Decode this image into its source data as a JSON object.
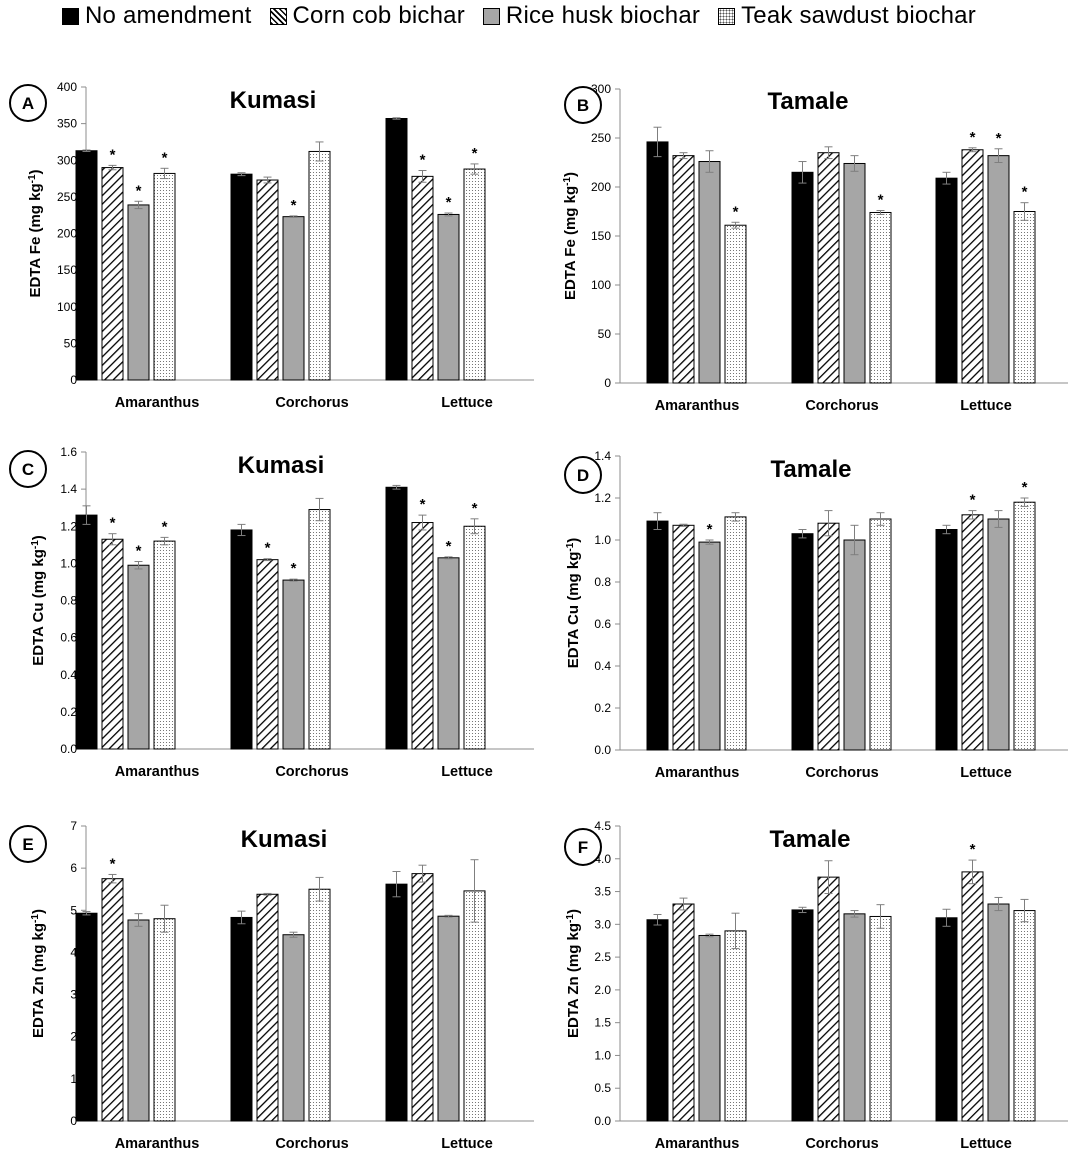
{
  "legend": [
    {
      "name": "No amendment",
      "style": "solid"
    },
    {
      "name": "Corn cob bichar",
      "style": "hatch"
    },
    {
      "name": "Rice husk biochar",
      "style": "gray"
    },
    {
      "name": "Teak sawdust biochar",
      "style": "dots"
    }
  ],
  "colors": {
    "solid": "#000000",
    "gray": "#a6a6a6",
    "hatch": "#000000",
    "dots": "#8a8a8a",
    "error": "#7f7f7f"
  },
  "chart_data": [
    {
      "type": "bar",
      "panel": "A",
      "title": "Kumasi",
      "ylabel_prefix": "EDTA Fe  (mg kg",
      "ylabel_sup": "-1",
      "ylabel_suffix": ")",
      "categories": [
        "Amaranthus",
        "Corchorus",
        "Lettuce"
      ],
      "ylim": [
        0,
        400
      ],
      "yticks": [
        "0",
        "50",
        "100",
        "150",
        "200",
        "250",
        "300",
        "350",
        "400"
      ],
      "series": [
        {
          "name": "No amendment",
          "values": [
            313,
            281,
            357
          ],
          "errors": [
            1,
            2,
            1
          ],
          "sig": [
            "",
            "",
            ""
          ]
        },
        {
          "name": "Corn cob bichar",
          "values": [
            290,
            273,
            278
          ],
          "errors": [
            3,
            4,
            8
          ],
          "sig": [
            "*",
            "",
            "*"
          ]
        },
        {
          "name": "Rice husk biochar",
          "values": [
            239,
            223,
            226
          ],
          "errors": [
            5,
            1,
            2
          ],
          "sig": [
            "*",
            "*",
            "*"
          ]
        },
        {
          "name": "Teak sawdust biochar",
          "values": [
            282,
            312,
            288
          ],
          "errors": [
            7,
            13,
            7
          ],
          "sig": [
            "*",
            "",
            "*"
          ]
        }
      ]
    },
    {
      "type": "bar",
      "panel": "B",
      "title": "Tamale",
      "ylabel_prefix": "EDTA Fe  (mg kg",
      "ylabel_sup": "-1",
      "ylabel_suffix": ")",
      "categories": [
        "Amaranthus",
        "Corchorus",
        "Lettuce"
      ],
      "ylim": [
        0,
        300
      ],
      "yticks": [
        "0",
        "50",
        "100",
        "150",
        "200",
        "250",
        "300"
      ],
      "series": [
        {
          "name": "No amendment",
          "values": [
            246,
            215,
            209
          ],
          "errors": [
            15,
            11,
            6
          ],
          "sig": [
            "",
            "",
            ""
          ]
        },
        {
          "name": "Corn cob bichar",
          "values": [
            232,
            235,
            238
          ],
          "errors": [
            3,
            6,
            2
          ],
          "sig": [
            "",
            "",
            "*"
          ]
        },
        {
          "name": "Rice husk biochar",
          "values": [
            226,
            224,
            232
          ],
          "errors": [
            11,
            8,
            7
          ],
          "sig": [
            "",
            "",
            "*"
          ]
        },
        {
          "name": "Teak sawdust biochar",
          "values": [
            161,
            174,
            175
          ],
          "errors": [
            3,
            2,
            9
          ],
          "sig": [
            "*",
            "*",
            "*"
          ]
        }
      ]
    },
    {
      "type": "bar",
      "panel": "C",
      "title": "Kumasi",
      "ylabel_prefix": "EDTA Cu  (mg kg",
      "ylabel_sup": "-1",
      "ylabel_suffix": ")",
      "categories": [
        "Amaranthus",
        "Corchorus",
        "Lettuce"
      ],
      "ylim": [
        0,
        1.6
      ],
      "yticks": [
        "0.0",
        "0.2",
        "0.4",
        "0.6",
        "0.8",
        "1.0",
        "1.2",
        "1.4",
        "1.6"
      ],
      "series": [
        {
          "name": "No amendment",
          "values": [
            1.26,
            1.18,
            1.41
          ],
          "errors": [
            0.05,
            0.03,
            0.01
          ],
          "sig": [
            "",
            "",
            ""
          ]
        },
        {
          "name": "Corn cob bichar",
          "values": [
            1.13,
            1.02,
            1.22
          ],
          "errors": [
            0.03,
            0.005,
            0.04
          ],
          "sig": [
            "*",
            "*",
            "*"
          ]
        },
        {
          "name": "Rice husk biochar",
          "values": [
            0.99,
            0.91,
            1.03
          ],
          "errors": [
            0.02,
            0.005,
            0.005
          ],
          "sig": [
            "*",
            "*",
            "*"
          ]
        },
        {
          "name": "Teak sawdust biochar",
          "values": [
            1.12,
            1.29,
            1.2
          ],
          "errors": [
            0.02,
            0.06,
            0.04
          ],
          "sig": [
            "*",
            "",
            "*"
          ]
        }
      ]
    },
    {
      "type": "bar",
      "panel": "D",
      "title": "Tamale",
      "ylabel_prefix": "EDTA Cu  (mg kg",
      "ylabel_sup": "-1",
      "ylabel_suffix": ")",
      "categories": [
        "Amaranthus",
        "Corchorus",
        "Lettuce"
      ],
      "ylim": [
        0,
        1.4
      ],
      "yticks": [
        "0.0",
        "0.2",
        "0.4",
        "0.6",
        "0.8",
        "1.0",
        "1.2",
        "1.4"
      ],
      "series": [
        {
          "name": "No amendment",
          "values": [
            1.09,
            1.03,
            1.05
          ],
          "errors": [
            0.04,
            0.02,
            0.02
          ],
          "sig": [
            "",
            "",
            ""
          ]
        },
        {
          "name": "Corn cob bichar",
          "values": [
            1.07,
            1.08,
            1.12
          ],
          "errors": [
            0.005,
            0.06,
            0.02
          ],
          "sig": [
            "",
            "",
            "*"
          ]
        },
        {
          "name": "Rice husk biochar",
          "values": [
            0.99,
            1.0,
            1.1
          ],
          "errors": [
            0.01,
            0.07,
            0.04
          ],
          "sig": [
            "*",
            "",
            ""
          ]
        },
        {
          "name": "Teak sawdust biochar",
          "values": [
            1.11,
            1.1,
            1.18
          ],
          "errors": [
            0.02,
            0.03,
            0.02
          ],
          "sig": [
            "",
            "",
            "*"
          ]
        }
      ]
    },
    {
      "type": "bar",
      "panel": "E",
      "title": "Kumasi",
      "ylabel_prefix": "EDTA Zn  (mg kg",
      "ylabel_sup": "-1",
      "ylabel_suffix": ")",
      "categories": [
        "Amaranthus",
        "Corchorus",
        "Lettuce"
      ],
      "ylim": [
        0,
        7
      ],
      "yticks": [
        "0",
        "1",
        "2",
        "3",
        "4",
        "5",
        "6",
        "7"
      ],
      "series": [
        {
          "name": "No amendment",
          "values": [
            4.93,
            4.83,
            5.62
          ],
          "errors": [
            0.04,
            0.15,
            0.3
          ],
          "sig": [
            "",
            "",
            ""
          ]
        },
        {
          "name": "Corn cob bichar",
          "values": [
            5.75,
            5.38,
            5.87
          ],
          "errors": [
            0.1,
            0.02,
            0.2
          ],
          "sig": [
            "*",
            "",
            ""
          ]
        },
        {
          "name": "Rice husk biochar",
          "values": [
            4.77,
            4.42,
            4.86
          ],
          "errors": [
            0.15,
            0.06,
            0.02
          ],
          "sig": [
            "",
            "",
            ""
          ]
        },
        {
          "name": "Teak sawdust biochar",
          "values": [
            4.8,
            5.5,
            5.46
          ],
          "errors": [
            0.32,
            0.28,
            0.74
          ],
          "sig": [
            "",
            "",
            ""
          ]
        }
      ]
    },
    {
      "type": "bar",
      "panel": "F",
      "title": "Tamale",
      "ylabel_prefix": "EDTA Zn  (mg kg",
      "ylabel_sup": "-1",
      "ylabel_suffix": ")",
      "categories": [
        "Amaranthus",
        "Corchorus",
        "Lettuce"
      ],
      "ylim": [
        0,
        4.5
      ],
      "yticks": [
        "0.0",
        "0.5",
        "1.0",
        "1.5",
        "2.0",
        "2.5",
        "3.0",
        "3.5",
        "4.0",
        "4.5"
      ],
      "series": [
        {
          "name": "No amendment",
          "values": [
            3.07,
            3.22,
            3.1
          ],
          "errors": [
            0.08,
            0.04,
            0.13
          ],
          "sig": [
            "",
            "",
            ""
          ]
        },
        {
          "name": "Corn cob bichar",
          "values": [
            3.31,
            3.72,
            3.8
          ],
          "errors": [
            0.09,
            0.25,
            0.18
          ],
          "sig": [
            "",
            "",
            "*"
          ]
        },
        {
          "name": "Rice husk biochar",
          "values": [
            2.83,
            3.16,
            3.31
          ],
          "errors": [
            0.02,
            0.05,
            0.1
          ],
          "sig": [
            "",
            "",
            ""
          ]
        },
        {
          "name": "Teak sawdust biochar",
          "values": [
            2.9,
            3.12,
            3.21
          ],
          "errors": [
            0.27,
            0.18,
            0.17
          ],
          "sig": [
            "",
            "",
            ""
          ]
        }
      ]
    }
  ]
}
